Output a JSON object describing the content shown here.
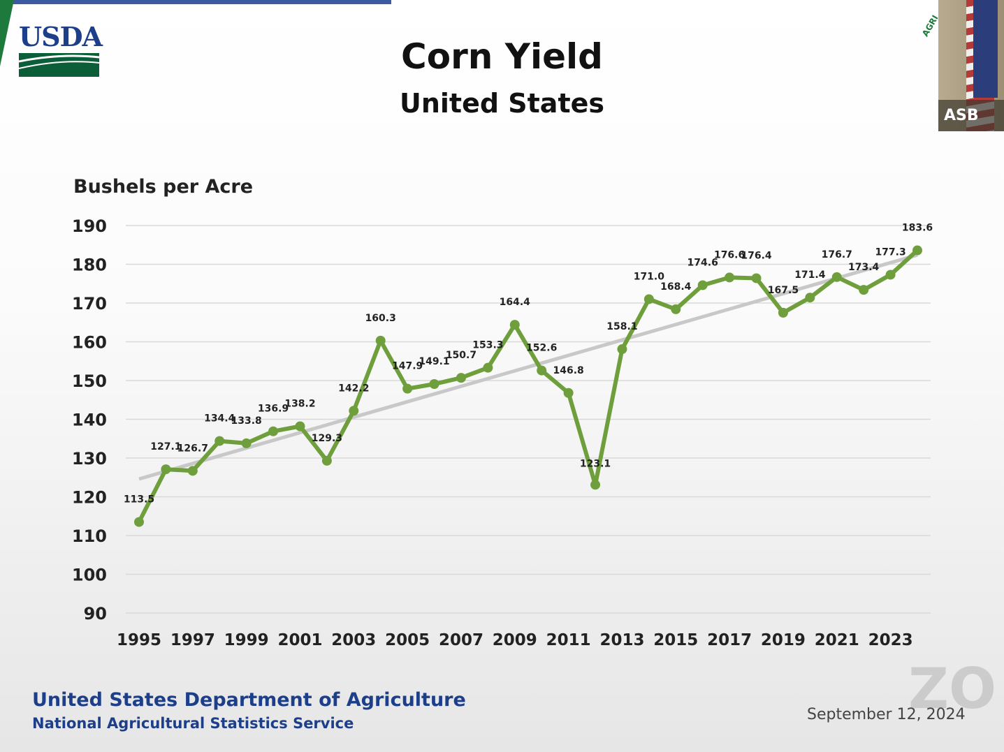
{
  "logo": {
    "text": "USDA"
  },
  "video": {
    "name": "ASB"
  },
  "chart_data": {
    "type": "line",
    "title": "Corn Yield",
    "subtitle": "United States",
    "ylabel": "Bushels per Acre",
    "xlabel": "",
    "ylim": [
      90,
      190
    ],
    "yticks": [
      90,
      100,
      110,
      120,
      130,
      140,
      150,
      160,
      170,
      180,
      190
    ],
    "xticks": [
      1995,
      1997,
      1999,
      2001,
      2003,
      2005,
      2007,
      2009,
      2011,
      2013,
      2015,
      2017,
      2019,
      2021,
      2023
    ],
    "grid": true,
    "x": [
      1995,
      1996,
      1997,
      1998,
      1999,
      2000,
      2001,
      2002,
      2003,
      2004,
      2005,
      2006,
      2007,
      2008,
      2009,
      2010,
      2011,
      2012,
      2013,
      2014,
      2015,
      2016,
      2017,
      2018,
      2019,
      2020,
      2021,
      2022,
      2023,
      2024
    ],
    "values": [
      113.5,
      127.1,
      126.7,
      134.4,
      133.8,
      136.9,
      138.2,
      129.3,
      142.2,
      160.3,
      147.9,
      149.1,
      150.7,
      153.3,
      164.4,
      152.6,
      146.8,
      123.1,
      158.1,
      171.0,
      168.4,
      174.6,
      176.6,
      176.4,
      167.5,
      171.4,
      176.7,
      173.4,
      177.3,
      183.6
    ],
    "trend": {
      "start": [
        1995,
        124.6
      ],
      "end": [
        2024,
        182.4
      ]
    },
    "colors": {
      "series": "#6f9f3c",
      "trend": "#c8c8c8"
    }
  },
  "footer": {
    "org": "United States Department of Agriculture",
    "service": "National Agricultural Statistics Service",
    "date": "September 12, 2024"
  }
}
